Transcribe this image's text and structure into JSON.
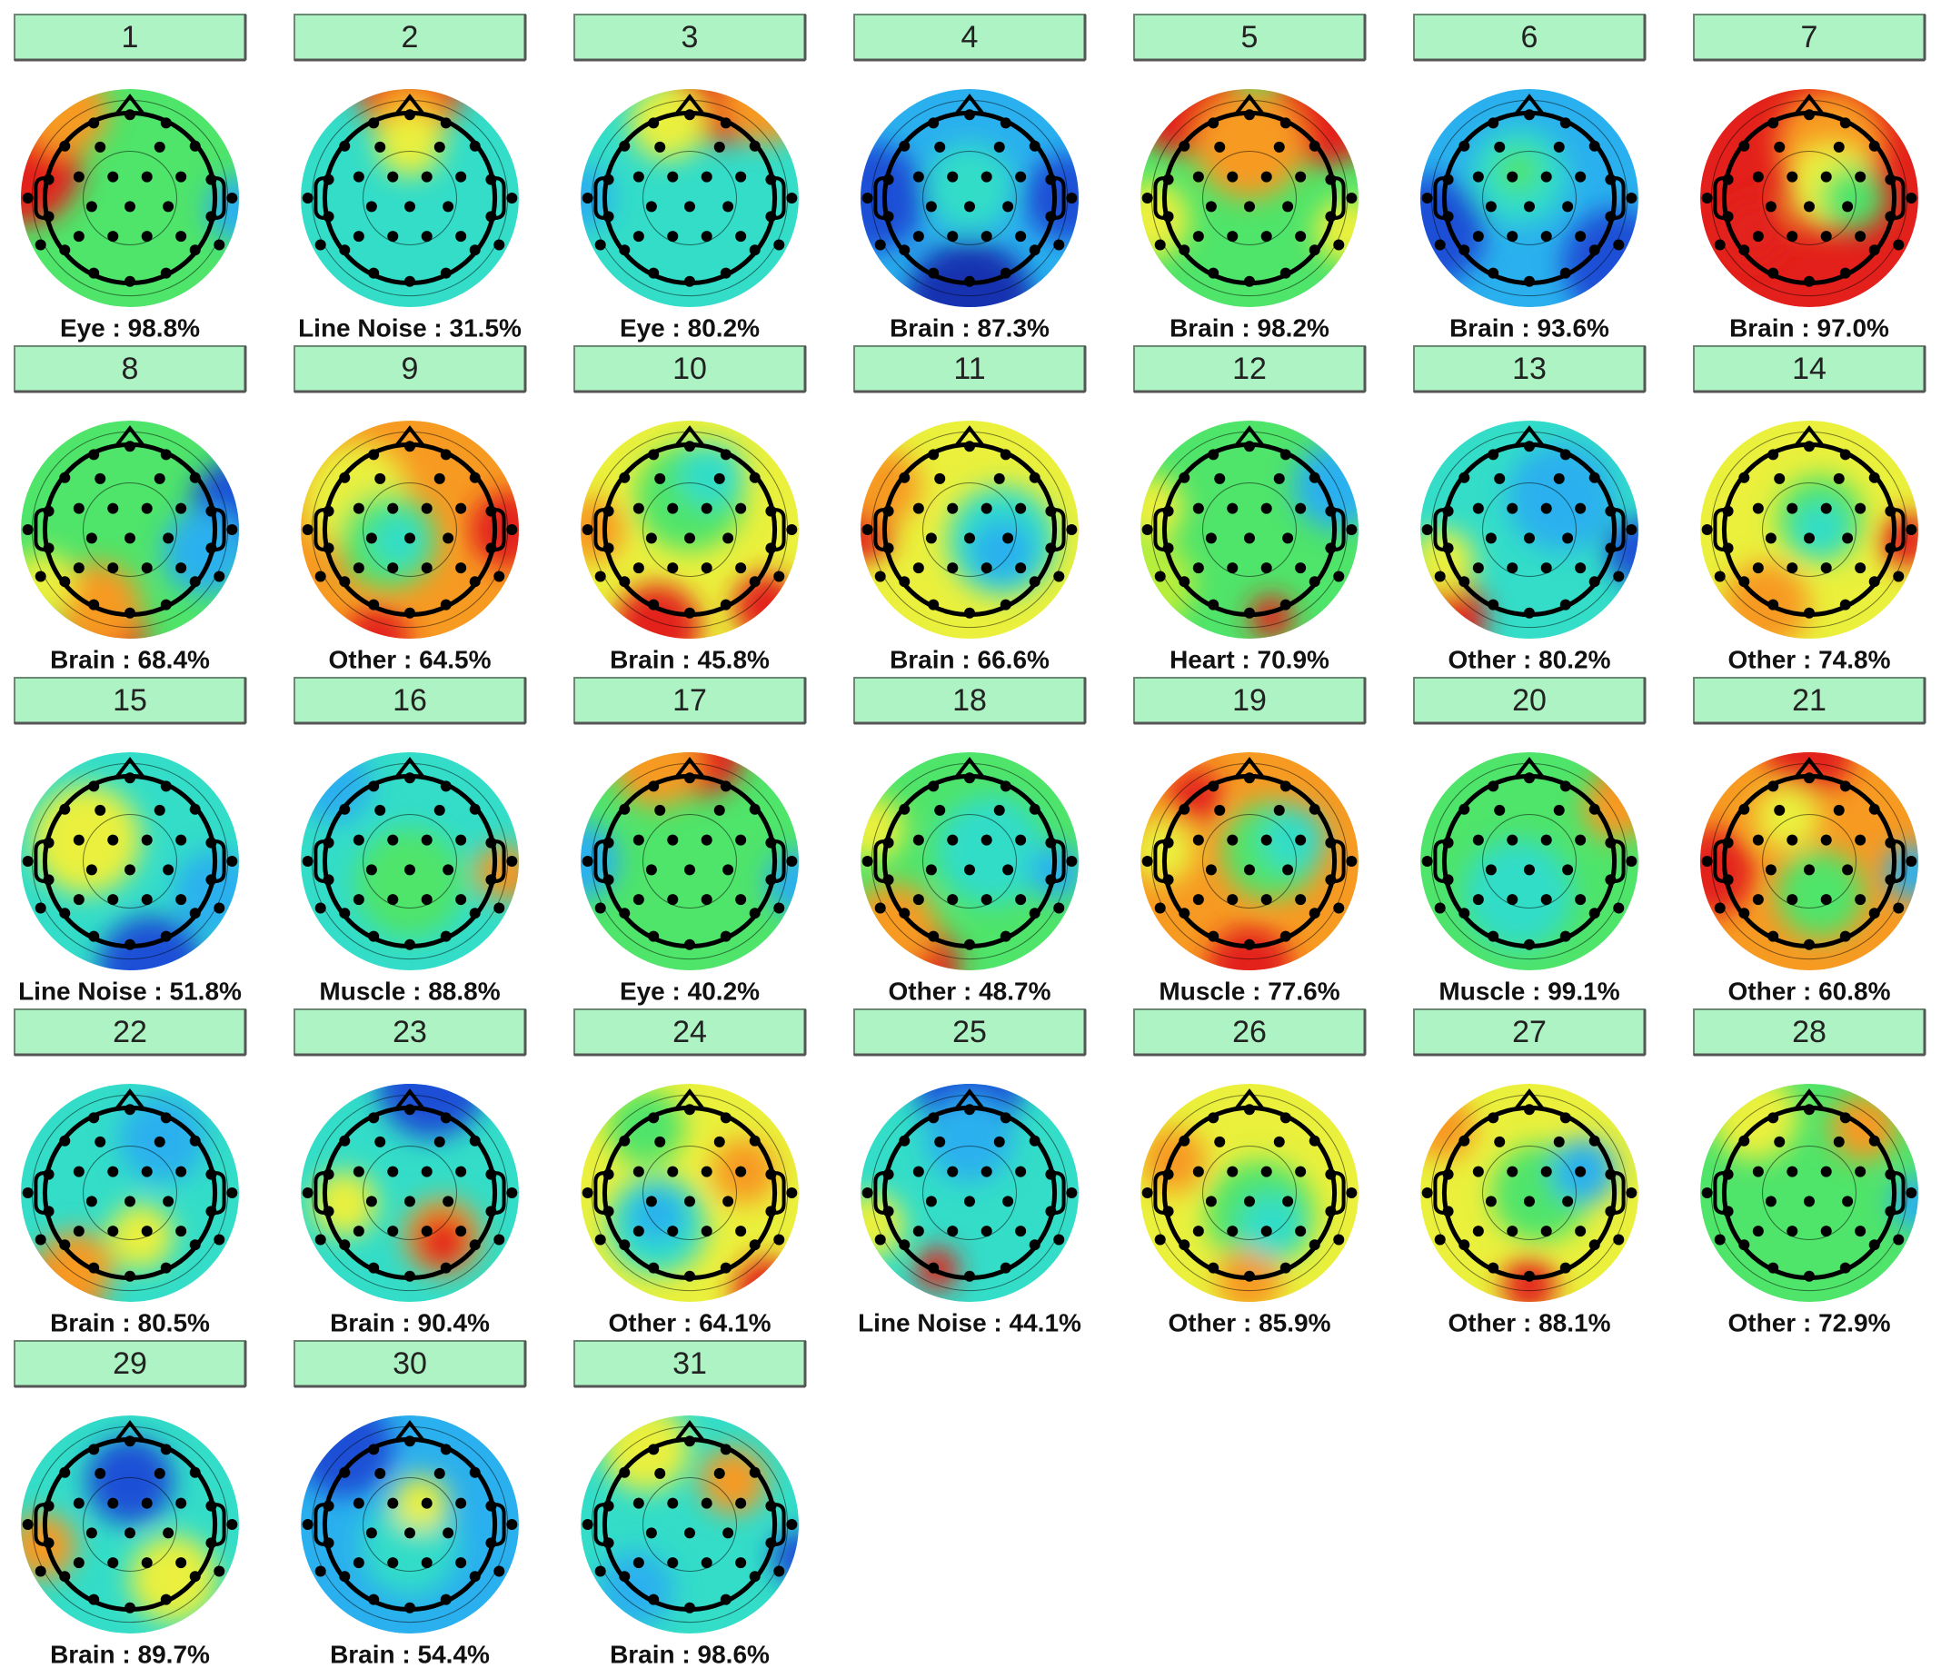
{
  "components": [
    {
      "number": "1",
      "label": "Eye : 98.8%"
    },
    {
      "number": "2",
      "label": "Line Noise : 31.5%"
    },
    {
      "number": "3",
      "label": "Eye : 80.2%"
    },
    {
      "number": "4",
      "label": "Brain : 87.3%"
    },
    {
      "number": "5",
      "label": "Brain : 98.2%"
    },
    {
      "number": "6",
      "label": "Brain : 93.6%"
    },
    {
      "number": "7",
      "label": "Brain : 97.0%"
    },
    {
      "number": "8",
      "label": "Brain : 68.4%"
    },
    {
      "number": "9",
      "label": "Other : 64.5%"
    },
    {
      "number": "10",
      "label": "Brain : 45.8%"
    },
    {
      "number": "11",
      "label": "Brain : 66.6%"
    },
    {
      "number": "12",
      "label": "Heart : 70.9%"
    },
    {
      "number": "13",
      "label": "Other : 80.2%"
    },
    {
      "number": "14",
      "label": "Other : 74.8%"
    },
    {
      "number": "15",
      "label": "Line Noise : 51.8%"
    },
    {
      "number": "16",
      "label": "Muscle : 88.8%"
    },
    {
      "number": "17",
      "label": "Eye : 40.2%"
    },
    {
      "number": "18",
      "label": "Other : 48.7%"
    },
    {
      "number": "19",
      "label": "Muscle : 77.6%"
    },
    {
      "number": "20",
      "label": "Muscle : 99.1%"
    },
    {
      "number": "21",
      "label": "Other : 60.8%"
    },
    {
      "number": "22",
      "label": "Brain : 80.5%"
    },
    {
      "number": "23",
      "label": "Brain : 90.4%"
    },
    {
      "number": "24",
      "label": "Other : 64.1%"
    },
    {
      "number": "25",
      "label": "Line Noise : 44.1%"
    },
    {
      "number": "26",
      "label": "Other : 85.9%"
    },
    {
      "number": "27",
      "label": "Other : 88.1%"
    },
    {
      "number": "28",
      "label": "Other : 72.9%"
    },
    {
      "number": "29",
      "label": "Brain : 89.7%"
    },
    {
      "number": "30",
      "label": "Brain : 54.4%"
    },
    {
      "number": "31",
      "label": "Brain : 98.6%"
    }
  ]
}
